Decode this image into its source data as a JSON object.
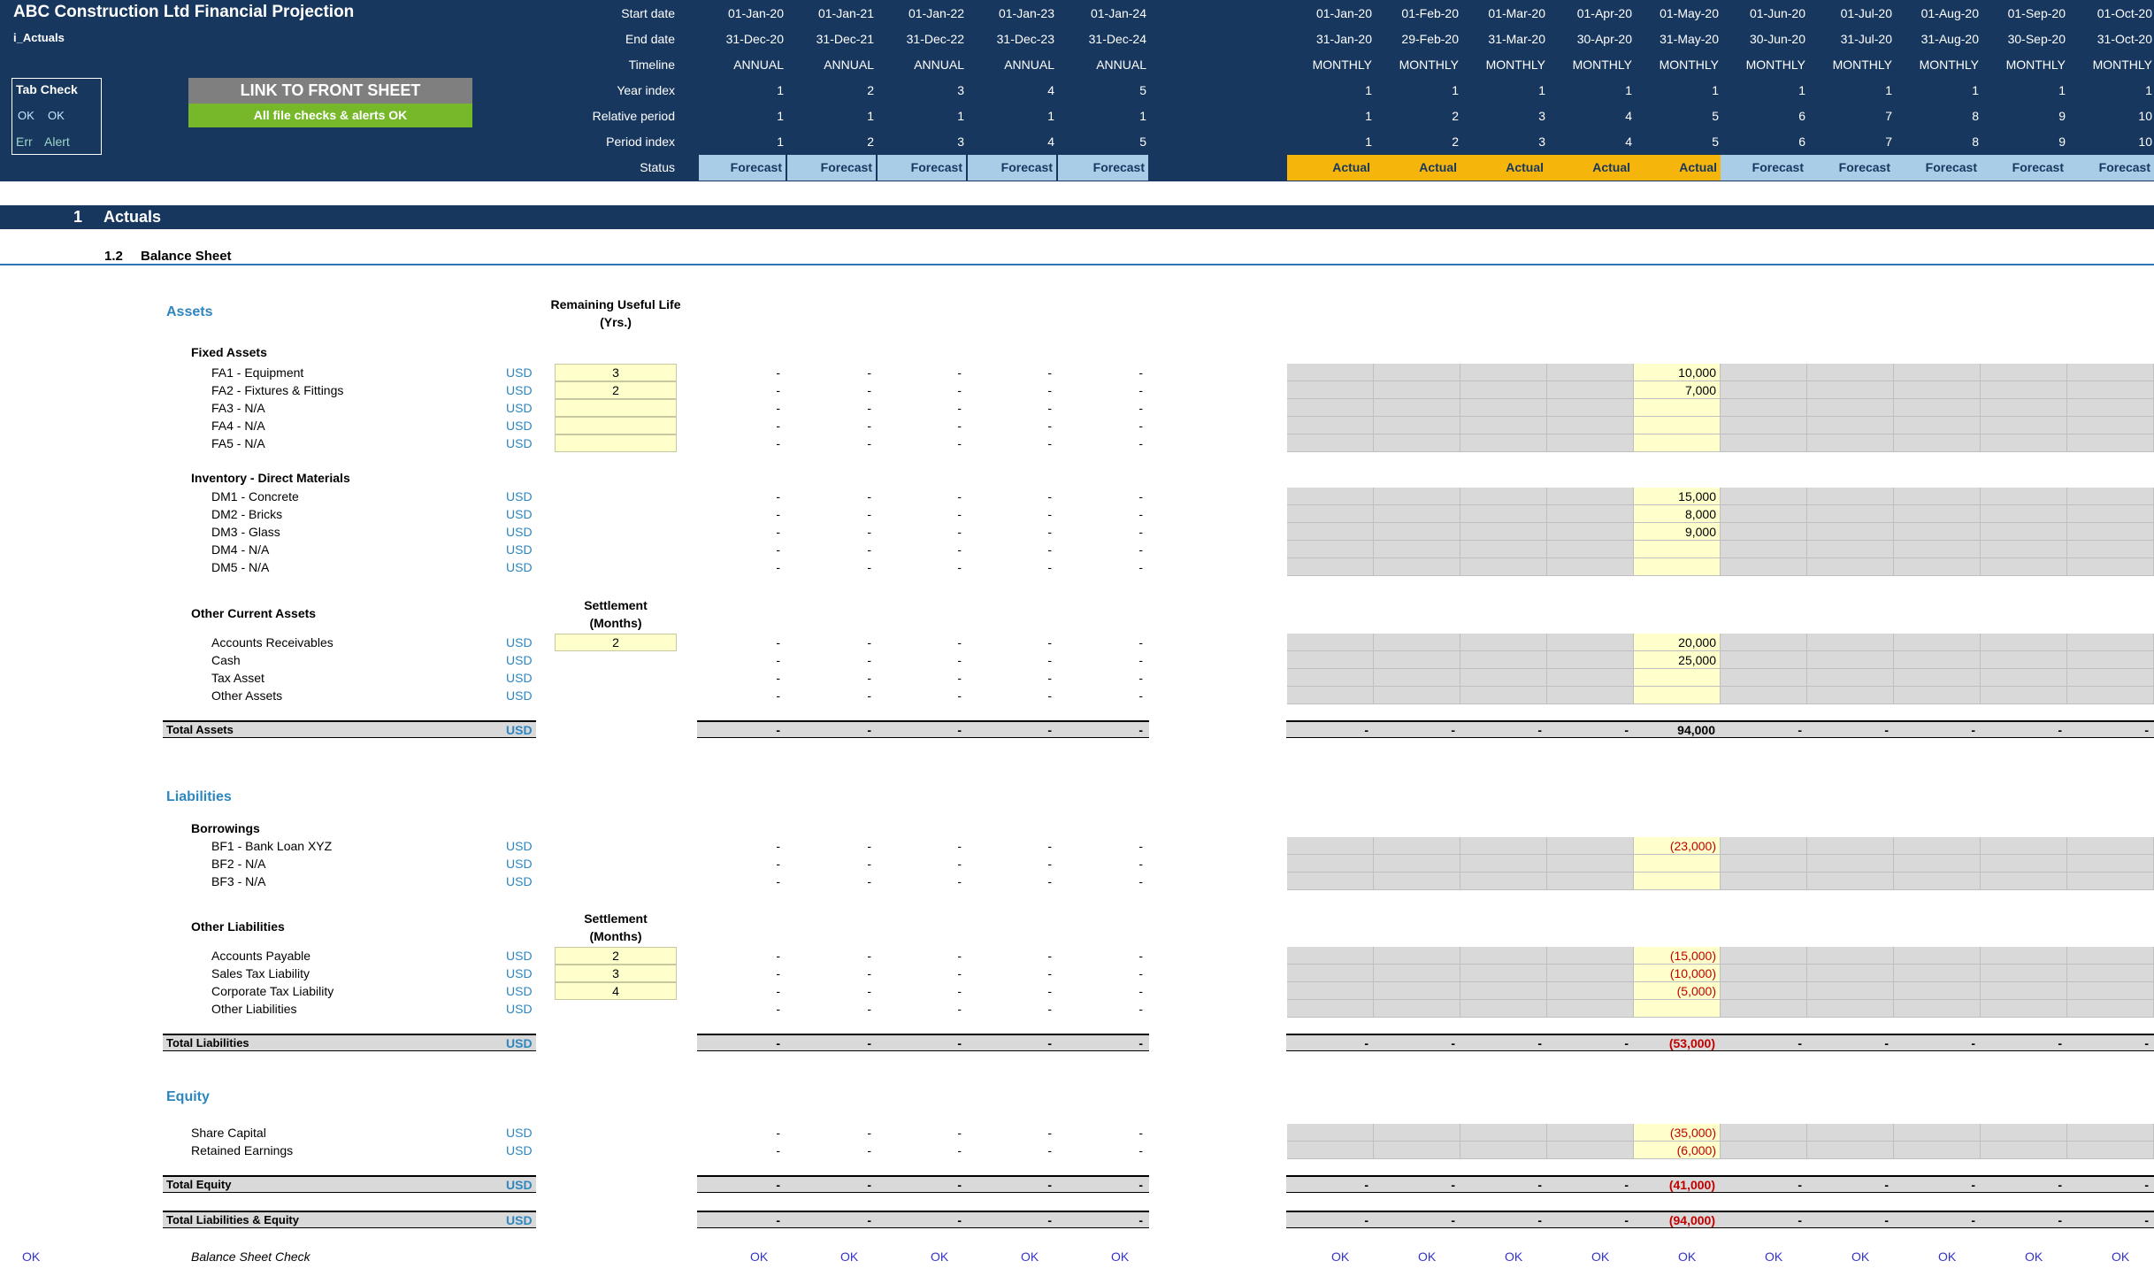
{
  "header": {
    "title": "ABC Construction Ltd Financial Projection",
    "sheet_name": "i_Actuals",
    "tab_check": {
      "title": "Tab Check",
      "ok1": "OK",
      "ok2": "OK",
      "err": "Err",
      "alert": "Alert"
    },
    "link_button": "LINK TO FRONT SHEET",
    "checks_status": "All file checks & alerts OK",
    "row_labels": [
      "Start date",
      "End date",
      "Timeline",
      "Year index",
      "Relative period",
      "Period index",
      "Status"
    ],
    "annual": [
      {
        "start": "01-Jan-20",
        "end": "31-Dec-20",
        "timeline": "ANNUAL",
        "year_index": "1",
        "relative": "1",
        "period_index": "1",
        "status": "Forecast"
      },
      {
        "start": "01-Jan-21",
        "end": "31-Dec-21",
        "timeline": "ANNUAL",
        "year_index": "2",
        "relative": "1",
        "period_index": "2",
        "status": "Forecast"
      },
      {
        "start": "01-Jan-22",
        "end": "31-Dec-22",
        "timeline": "ANNUAL",
        "year_index": "3",
        "relative": "1",
        "period_index": "3",
        "status": "Forecast"
      },
      {
        "start": "01-Jan-23",
        "end": "31-Dec-23",
        "timeline": "ANNUAL",
        "year_index": "4",
        "relative": "1",
        "period_index": "4",
        "status": "Forecast"
      },
      {
        "start": "01-Jan-24",
        "end": "31-Dec-24",
        "timeline": "ANNUAL",
        "year_index": "5",
        "relative": "1",
        "period_index": "5",
        "status": "Forecast"
      }
    ],
    "monthly": [
      {
        "start": "01-Jan-20",
        "end": "31-Jan-20",
        "timeline": "MONTHLY",
        "year_index": "1",
        "relative": "1",
        "period_index": "1",
        "status": "Actual"
      },
      {
        "start": "01-Feb-20",
        "end": "29-Feb-20",
        "timeline": "MONTHLY",
        "year_index": "1",
        "relative": "2",
        "period_index": "2",
        "status": "Actual"
      },
      {
        "start": "01-Mar-20",
        "end": "31-Mar-20",
        "timeline": "MONTHLY",
        "year_index": "1",
        "relative": "3",
        "period_index": "3",
        "status": "Actual"
      },
      {
        "start": "01-Apr-20",
        "end": "30-Apr-20",
        "timeline": "MONTHLY",
        "year_index": "1",
        "relative": "4",
        "period_index": "4",
        "status": "Actual"
      },
      {
        "start": "01-May-20",
        "end": "31-May-20",
        "timeline": "MONTHLY",
        "year_index": "1",
        "relative": "5",
        "period_index": "5",
        "status": "Actual"
      },
      {
        "start": "01-Jun-20",
        "end": "30-Jun-20",
        "timeline": "MONTHLY",
        "year_index": "1",
        "relative": "6",
        "period_index": "6",
        "status": "Forecast"
      },
      {
        "start": "01-Jul-20",
        "end": "31-Jul-20",
        "timeline": "MONTHLY",
        "year_index": "1",
        "relative": "7",
        "period_index": "7",
        "status": "Forecast"
      },
      {
        "start": "01-Aug-20",
        "end": "31-Aug-20",
        "timeline": "MONTHLY",
        "year_index": "1",
        "relative": "8",
        "period_index": "8",
        "status": "Forecast"
      },
      {
        "start": "01-Sep-20",
        "end": "30-Sep-20",
        "timeline": "MONTHLY",
        "year_index": "1",
        "relative": "9",
        "period_index": "9",
        "status": "Forecast"
      },
      {
        "start": "01-Oct-20",
        "end": "31-Oct-20",
        "timeline": "MONTHLY",
        "year_index": "1",
        "relative": "10",
        "period_index": "10",
        "status": "Forecast"
      }
    ]
  },
  "section": {
    "number": "1",
    "title": "Actuals",
    "sub_number": "1.2",
    "sub_title": "Balance Sheet"
  },
  "balance_sheet": {
    "assets": {
      "title": "Assets",
      "useful_life_header": "Remaining Useful Life (Yrs.)",
      "fixed_assets": {
        "title": "Fixed Assets",
        "rows": [
          {
            "label": "FA1 - Equipment",
            "unit": "USD",
            "input": "3",
            "may": "10,000"
          },
          {
            "label": "FA2 - Fixtures & Fittings",
            "unit": "USD",
            "input": "2",
            "may": "7,000"
          },
          {
            "label": "FA3 - N/A",
            "unit": "USD",
            "input": "",
            "may": ""
          },
          {
            "label": "FA4 - N/A",
            "unit": "USD",
            "input": "",
            "may": ""
          },
          {
            "label": "FA5 - N/A",
            "unit": "USD",
            "input": "",
            "may": ""
          }
        ]
      },
      "inventory": {
        "title": "Inventory - Direct Materials",
        "rows": [
          {
            "label": "DM1 - Concrete",
            "unit": "USD",
            "may": "15,000"
          },
          {
            "label": "DM2 - Bricks",
            "unit": "USD",
            "may": "8,000"
          },
          {
            "label": "DM3 - Glass",
            "unit": "USD",
            "may": "9,000"
          },
          {
            "label": "DM4 - N/A",
            "unit": "USD",
            "may": ""
          },
          {
            "label": "DM5 - N/A",
            "unit": "USD",
            "may": ""
          }
        ]
      },
      "other_current": {
        "title": "Other Current Assets",
        "settlement_header": "Settlement (Months)",
        "rows": [
          {
            "label": "Accounts Receivables",
            "unit": "USD",
            "input": "2",
            "may": "20,000"
          },
          {
            "label": "Cash",
            "unit": "USD",
            "may": "25,000"
          },
          {
            "label": "Tax Asset",
            "unit": "USD",
            "may": ""
          },
          {
            "label": "Other Assets",
            "unit": "USD",
            "may": ""
          }
        ]
      },
      "total": {
        "label": "Total Assets",
        "unit": "USD",
        "may": "94,000"
      }
    },
    "liabilities": {
      "title": "Liabilities",
      "borrowings": {
        "title": "Borrowings",
        "rows": [
          {
            "label": "BF1 - Bank Loan XYZ",
            "unit": "USD",
            "may": "(23,000)"
          },
          {
            "label": "BF2 - N/A",
            "unit": "USD",
            "may": ""
          },
          {
            "label": "BF3 - N/A",
            "unit": "USD",
            "may": ""
          }
        ]
      },
      "other": {
        "title": "Other Liabilities",
        "settlement_header": "Settlement (Months)",
        "rows": [
          {
            "label": "Accounts Payable",
            "unit": "USD",
            "input": "2",
            "may": "(15,000)"
          },
          {
            "label": "Sales Tax Liability",
            "unit": "USD",
            "input": "3",
            "may": "(10,000)"
          },
          {
            "label": "Corporate Tax Liability",
            "unit": "USD",
            "input": "4",
            "may": "(5,000)"
          },
          {
            "label": "Other Liabilities",
            "unit": "USD",
            "may": ""
          }
        ]
      },
      "total": {
        "label": "Total Liabilities",
        "unit": "USD",
        "may": "(53,000)"
      }
    },
    "equity": {
      "title": "Equity",
      "rows": [
        {
          "label": "Share Capital",
          "unit": "USD",
          "may": "(35,000)"
        },
        {
          "label": "Retained Earnings",
          "unit": "USD",
          "may": "(6,000)"
        }
      ],
      "total": {
        "label": "Total Equity",
        "unit": "USD",
        "may": "(41,000)"
      }
    },
    "total_le": {
      "label": "Total Liabilities & Equity",
      "unit": "USD",
      "may": "(94,000)"
    },
    "check": {
      "label": "Balance Sheet Check",
      "left": "OK",
      "value": "OK"
    }
  },
  "dash": "-",
  "colors": {
    "header_bg": "#17375e",
    "forecast": "#a9cce7",
    "actual": "#f5b50b",
    "accent": "#2e86c1",
    "input": "#ffffcc",
    "negative": "#c00000"
  }
}
